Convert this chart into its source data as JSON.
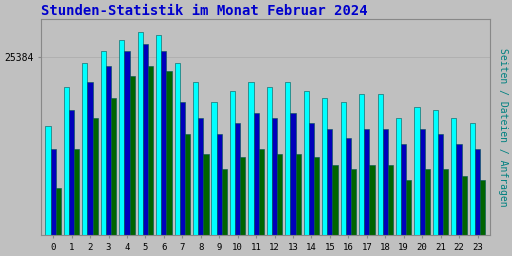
{
  "title": "Stunden-Statistik im Monat Februar 2024",
  "title_color": "#0000CC",
  "title_fontsize": 10,
  "ylabel": "Seiten / Dateien / Anfragen",
  "ylabel_color": "#008080",
  "ylabel_fontsize": 7,
  "ytick_label": "25384",
  "background_color": "#C0C0C0",
  "plot_bg_color": "#C0C0C0",
  "hours": [
    0,
    1,
    2,
    3,
    4,
    5,
    6,
    7,
    8,
    9,
    10,
    11,
    12,
    13,
    14,
    15,
    16,
    17,
    18,
    19,
    20,
    21,
    22,
    23
  ],
  "seiten": [
    21000,
    23500,
    25000,
    25800,
    26500,
    27000,
    26800,
    25000,
    23800,
    22500,
    23200,
    23800,
    23500,
    23800,
    23200,
    22800,
    22500,
    23000,
    23000,
    21500,
    22200,
    22000,
    21500,
    21200
  ],
  "dateien": [
    19500,
    22000,
    23800,
    24800,
    25800,
    26200,
    25800,
    22500,
    21500,
    20500,
    21200,
    21800,
    21500,
    21800,
    21200,
    20800,
    20200,
    20800,
    20800,
    19800,
    20800,
    20500,
    19800,
    19500
  ],
  "anfragen": [
    17000,
    19500,
    21500,
    22800,
    24200,
    24800,
    24500,
    20500,
    19200,
    18200,
    19000,
    19500,
    19200,
    19200,
    19000,
    18500,
    18200,
    18500,
    18500,
    17500,
    18200,
    18200,
    17800,
    17500
  ],
  "color_seiten": "#00FFFF",
  "color_dateien": "#0000BB",
  "color_anfragen": "#006400",
  "bar_edge_color": "#005555",
  "ylim_min": 14000,
  "ylim_max": 27800,
  "ytick_val": 25384,
  "figsize": [
    5.12,
    2.56
  ],
  "dpi": 100
}
